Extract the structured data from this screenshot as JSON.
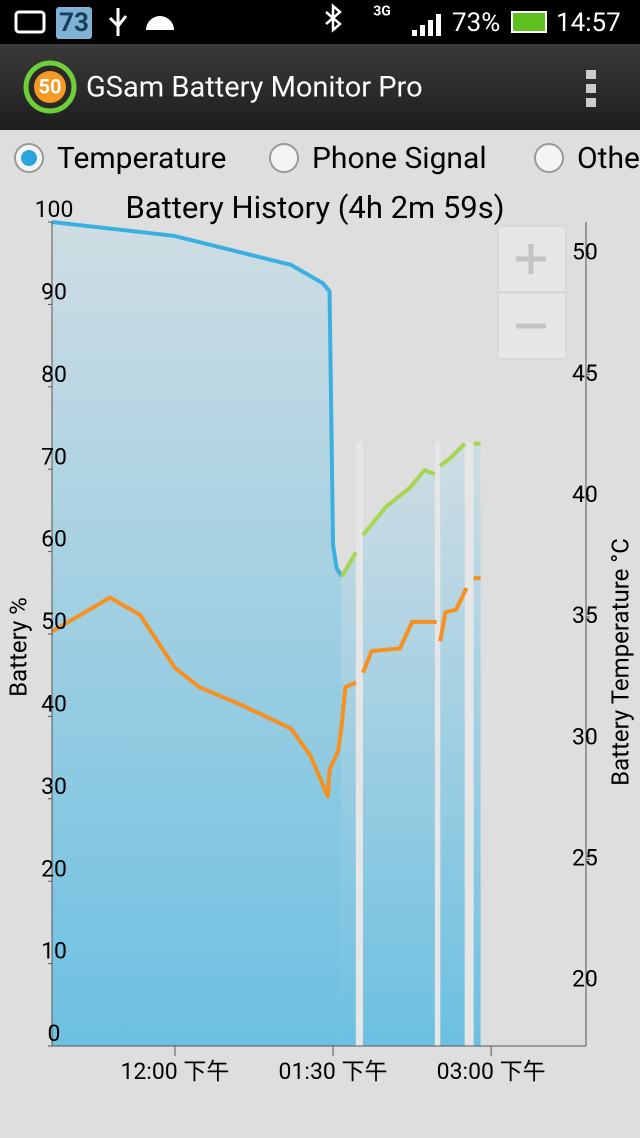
{
  "status_bar": {
    "notification_number": "73",
    "network": "3G",
    "battery": "73%",
    "time": "14:57"
  },
  "app_bar": {
    "icon_label": "50",
    "title": "GSam Battery Monitor Pro"
  },
  "radio_options": [
    "Temperature",
    "Phone Signal",
    "Other"
  ],
  "chart_data": {
    "type": "line",
    "title": "Battery History (4h 2m 59s)",
    "y_label": "Battery %",
    "y2_label": "Battery Temperature °C",
    "xlim": [
      "10:50",
      "15:54"
    ],
    "xticks": [
      {
        "value": "12:00",
        "label": "12:00 下午"
      },
      {
        "value": "13:30",
        "label": "01:30 下午"
      },
      {
        "value": "15:00",
        "label": "03:00 下午"
      }
    ],
    "ylim": [
      0,
      100
    ],
    "yticks": [
      0,
      10,
      20,
      30,
      40,
      50,
      60,
      70,
      80,
      90,
      100
    ],
    "y2lim": [
      17.3,
      51.3
    ],
    "y2ticks": [
      20,
      25,
      30,
      35,
      40,
      45,
      50
    ],
    "series": [
      {
        "color": "#3bb0e0",
        "x": [
          "10:50",
          "12:00",
          "13:06",
          "13:24",
          "13:28",
          "13:30",
          "13:32",
          "13:35"
        ],
        "values": [
          100,
          98.3,
          94.8,
          92.6,
          91.6,
          60.8,
          58,
          57
        ]
      },
      {
        "color": "#a6d651",
        "x": [
          "13:35",
          "13:43",
          "13:45",
          "13:47",
          "14:00",
          "14:14",
          "14:22",
          "14:28",
          "14:30",
          "14:31",
          "14:37",
          "14:45",
          "14:48",
          "14:50",
          "14:54"
        ],
        "values": [
          57,
          59.9,
          null,
          62,
          65.4,
          67.8,
          69.9,
          69.4,
          null,
          70.4,
          71.4,
          73.1,
          null,
          73.1,
          73.1
        ]
      },
      {
        "color": "#f7901e",
        "axis": "y2",
        "x": [
          "10:50",
          "11:23",
          "11:40",
          "12:00",
          "12:14",
          "12:37",
          "13:06",
          "13:17",
          "13:27",
          "13:28",
          "13:33",
          "13:35",
          "13:37",
          "13:43",
          "13:45",
          "13:47",
          "13:52",
          "14:08",
          "14:15",
          "14:29",
          "14:30",
          "14:31",
          "14:34",
          "14:40",
          "14:46",
          "14:48",
          "14:50",
          "14:54"
        ],
        "values": [
          34.4,
          35.8,
          35.1,
          32.9,
          32.1,
          31.4,
          30.4,
          29.3,
          27.6,
          28.7,
          29.5,
          30.6,
          32.1,
          32.3,
          null,
          32.7,
          33.6,
          33.7,
          34.8,
          34.8,
          null,
          34.0,
          35.2,
          35.3,
          36.2,
          null,
          36.6,
          36.6
        ]
      }
    ]
  }
}
